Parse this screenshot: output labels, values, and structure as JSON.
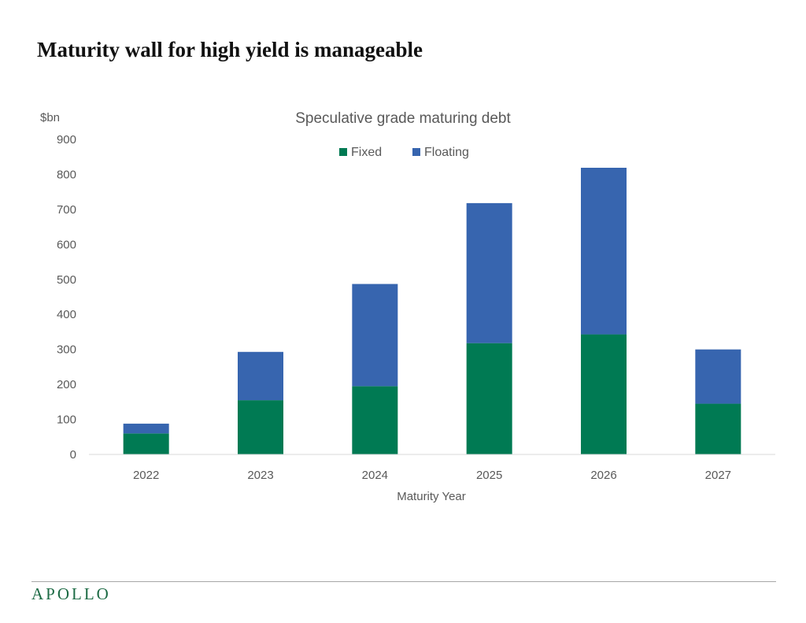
{
  "headline": "Maturity wall for high yield is manageable",
  "footer": {
    "brand": "APOLLO"
  },
  "colors": {
    "fixed": "#007a53",
    "floating": "#3765af",
    "brand": "#1d6b45"
  },
  "chart_data": {
    "type": "bar",
    "stacked": true,
    "title": "Speculative grade maturing debt",
    "xlabel": "Maturity Year",
    "ylabel": "$bn",
    "ylim": [
      0,
      900
    ],
    "yticks": [
      0,
      100,
      200,
      300,
      400,
      500,
      600,
      700,
      800,
      900
    ],
    "grid": false,
    "legend_position": "top",
    "categories": [
      "2022",
      "2023",
      "2024",
      "2025",
      "2026",
      "2027"
    ],
    "series": [
      {
        "name": "Fixed",
        "color": "#007a53",
        "values": [
          60,
          155,
          195,
          318,
          343,
          145
        ]
      },
      {
        "name": "Floating",
        "color": "#3765af",
        "values": [
          28,
          138,
          292,
          400,
          476,
          155
        ]
      }
    ]
  }
}
